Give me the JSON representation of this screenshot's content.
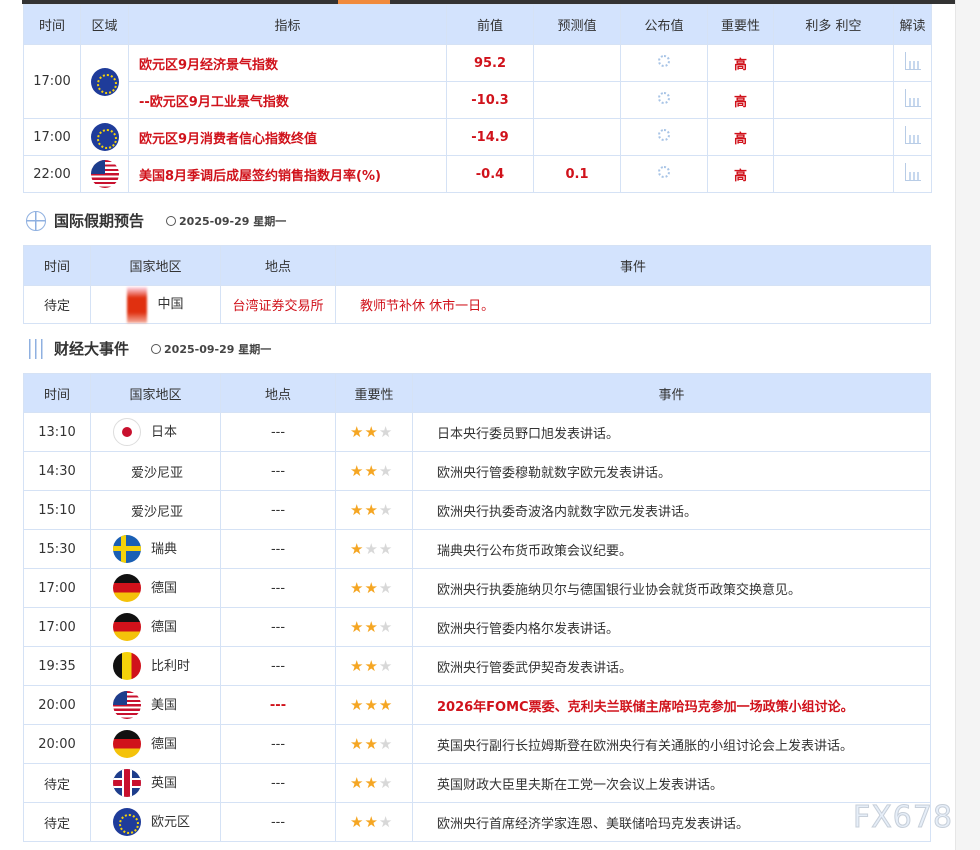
{
  "colors": {
    "header_bg": "#d3e3fd",
    "highlight_red": "#d0121b",
    "star": "#f5a623",
    "accent_tab": "#f08a3c"
  },
  "indicators": {
    "headers": [
      "时间",
      "区域",
      "指标",
      "前值",
      "预测值",
      "公布值",
      "重要性",
      "利多 利空",
      "解读"
    ],
    "rows": [
      {
        "time": "17:00",
        "region": "eu-flag",
        "name": "欧元区9月经济景气指数",
        "prev": "95.2",
        "forecast": "",
        "actual_icon": "loading-icon",
        "importance": "高"
      },
      {
        "time": "",
        "region": "",
        "name": "--欧元区9月工业景气指数",
        "prev": "-10.3",
        "forecast": "",
        "actual_icon": "loading-icon",
        "importance": "高"
      },
      {
        "time": "17:00",
        "region": "eu-flag",
        "name": "欧元区9月消费者信心指数终值",
        "prev": "-14.9",
        "forecast": "",
        "actual_icon": "loading-icon",
        "importance": "高"
      },
      {
        "time": "22:00",
        "region": "us-flag",
        "name": "美国8月季调后成屋签约销售指数月率(%)",
        "prev": "-0.4",
        "forecast": "0.1",
        "actual_icon": "loading-icon",
        "importance": "高"
      }
    ]
  },
  "holidays": {
    "title": "国际假期预告",
    "date": "2025-09-29 星期一",
    "headers": [
      "时间",
      "国家地区",
      "地点",
      "事件"
    ],
    "rows": [
      {
        "time": "待定",
        "country": "中国",
        "place": "台湾证券交易所",
        "event": "教师节补休 休市一日。"
      }
    ]
  },
  "events": {
    "title": "财经大事件",
    "date": "2025-09-29 星期一",
    "headers": [
      "时间",
      "国家地区",
      "地点",
      "重要性",
      "事件"
    ],
    "rows": [
      {
        "time": "13:10",
        "flag": "jp",
        "country": "日本",
        "place": "---",
        "stars": 2,
        "event": "日本央行委员野口旭发表讲话。"
      },
      {
        "time": "14:30",
        "flag": "",
        "country": "爱沙尼亚",
        "place": "---",
        "stars": 2,
        "event": "欧洲央行管委穆勒就数字欧元发表讲话。"
      },
      {
        "time": "15:10",
        "flag": "",
        "country": "爱沙尼亚",
        "place": "---",
        "stars": 2,
        "event": "欧洲央行执委奇波洛内就数字欧元发表讲话。"
      },
      {
        "time": "15:30",
        "flag": "se",
        "country": "瑞典",
        "place": "---",
        "stars": 1,
        "event": "瑞典央行公布货币政策会议纪要。"
      },
      {
        "time": "17:00",
        "flag": "de",
        "country": "德国",
        "place": "---",
        "stars": 2,
        "event": "欧洲央行执委施纳贝尔与德国银行业协会就货币政策交换意见。"
      },
      {
        "time": "17:00",
        "flag": "de",
        "country": "德国",
        "place": "---",
        "stars": 2,
        "event": "欧洲央行管委内格尔发表讲话。"
      },
      {
        "time": "19:35",
        "flag": "be",
        "country": "比利时",
        "place": "---",
        "stars": 2,
        "event": "欧洲央行管委武伊契奇发表讲话。"
      },
      {
        "time": "20:00",
        "flag": "us",
        "country": "美国",
        "place": "---",
        "stars": 3,
        "event": "2026年FOMC票委、克利夫兰联储主席哈玛克参加一场政策小组讨论。",
        "highlight": true
      },
      {
        "time": "20:00",
        "flag": "de",
        "country": "德国",
        "place": "---",
        "stars": 2,
        "event": "英国央行副行长拉姆斯登在欧洲央行有关通胀的小组讨论会上发表讲话。"
      },
      {
        "time": "待定",
        "flag": "gb",
        "country": "英国",
        "place": "---",
        "stars": 2,
        "event": "英国财政大臣里夫斯在工党一次会议上发表讲话。"
      },
      {
        "time": "待定",
        "flag": "eu",
        "country": "欧元区",
        "place": "---",
        "stars": 2,
        "event": "欧洲央行首席经济学家连恩、美联储哈玛克发表讲话。"
      }
    ]
  },
  "watermark": "FX678"
}
